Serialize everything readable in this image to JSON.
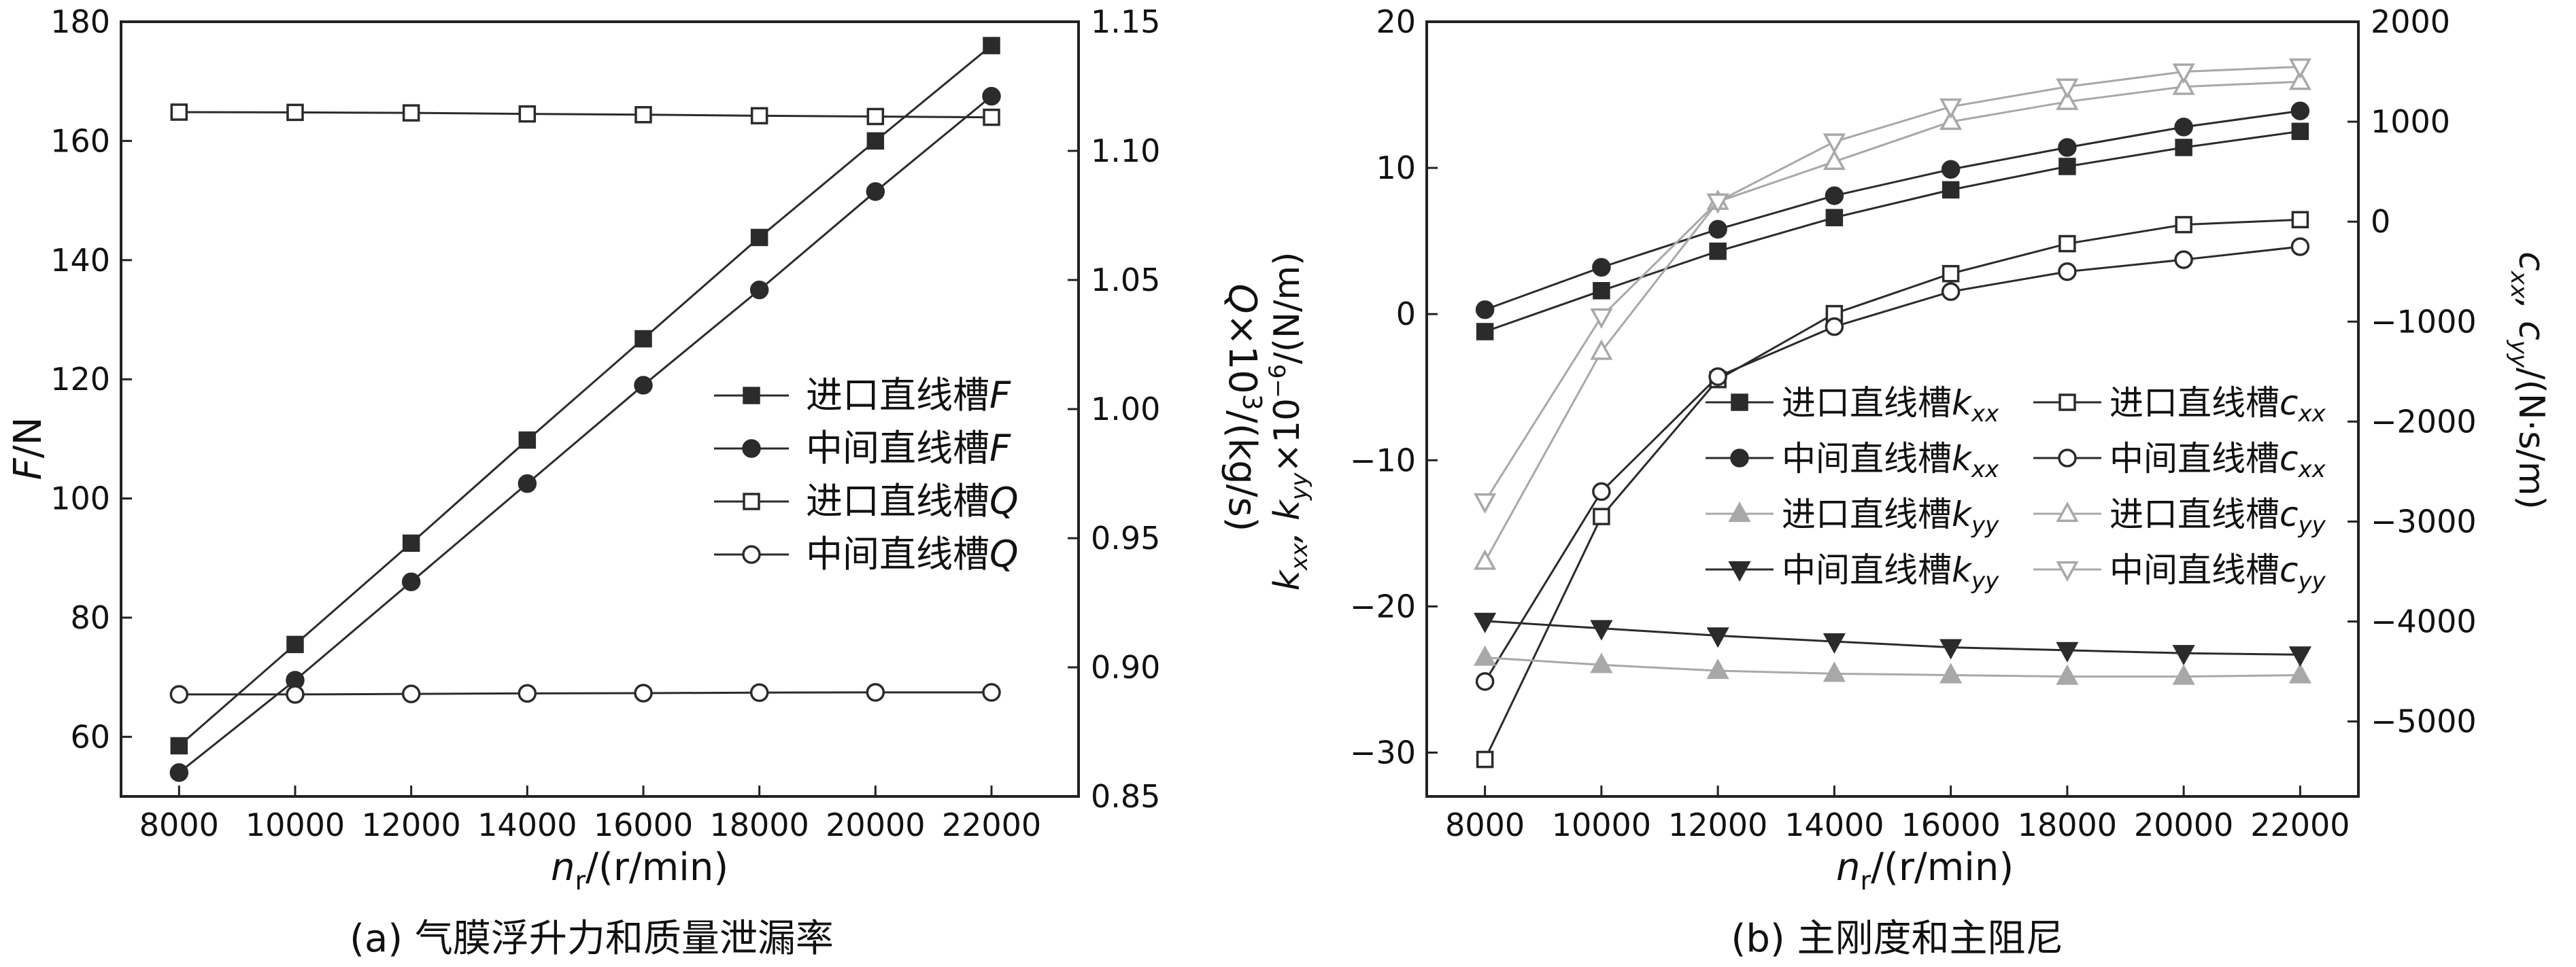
{
  "colors": {
    "dark": "#2b2b2b",
    "light": "#a8a8a8"
  },
  "chart_data": [
    {
      "type": "line",
      "caption": "(a) 气膜浮升力和质量泄漏率",
      "xlabel_main": "n",
      "xlabel_sub": "r",
      "xlabel_rest": "/(r/min)",
      "ylabel_left_main": "F",
      "ylabel_left_rest": "/N",
      "ylabel_right_main": "Q",
      "ylabel_right_rest": "×10",
      "ylabel_right_sup": "3",
      "ylabel_right_tail": "/(kg/s)",
      "x": [
        8000,
        10000,
        12000,
        14000,
        16000,
        18000,
        20000,
        22000
      ],
      "xlim": [
        7000,
        23500
      ],
      "ylim_left": [
        50,
        180
      ],
      "ylim_right": [
        0.85,
        1.15
      ],
      "xticks": [
        "8000",
        "10000",
        "12000",
        "14000",
        "16000",
        "18000",
        "20000",
        "22000"
      ],
      "yticks_left": [
        "60",
        "80",
        "100",
        "120",
        "140",
        "160",
        "180"
      ],
      "yticks_right": [
        "0.85",
        "0.90",
        "0.95",
        "1.00",
        "1.05",
        "1.10",
        "1.15"
      ],
      "legend_position": "center-right",
      "series": [
        {
          "name_main": "进口直线槽",
          "name_sub": "F",
          "axis": "left",
          "marker": "square-filled",
          "tone": "dark",
          "values": [
            58.5,
            75.5,
            92.5,
            109.8,
            126.8,
            143.8,
            160.0,
            176.0
          ]
        },
        {
          "name_main": "中间直线槽",
          "name_sub": "F",
          "axis": "left",
          "marker": "circle-filled",
          "tone": "dark",
          "values": [
            54.0,
            69.5,
            86.0,
            102.5,
            119.0,
            135.0,
            151.5,
            167.5
          ]
        },
        {
          "name_main": "进口直线槽",
          "name_sub": "Q",
          "axis": "right",
          "marker": "square-open",
          "tone": "dark",
          "values": [
            1.115,
            1.1149,
            1.1147,
            1.1143,
            1.114,
            1.1136,
            1.1133,
            1.113
          ]
        },
        {
          "name_main": "中间直线槽",
          "name_sub": "Q",
          "axis": "right",
          "marker": "circle-open",
          "tone": "dark",
          "values": [
            0.8895,
            0.8895,
            0.8897,
            0.8899,
            0.89,
            0.8902,
            0.8903,
            0.8903
          ]
        }
      ]
    },
    {
      "type": "line",
      "caption": "(b) 主刚度和主阻尼",
      "xlabel_main": "n",
      "xlabel_sub": "r",
      "xlabel_rest": "/(r/min)",
      "ylabel_left_text": "k_xx, k_yy ×10^−6 /(N/m)",
      "ylabel_left_parts": [
        "k",
        "xx",
        ", k",
        "yy",
        "×10",
        "−6",
        "/(N/m)"
      ],
      "ylabel_right_parts": [
        "c",
        "xx",
        ", c",
        "yy",
        "/(N·s/m)"
      ],
      "x": [
        8000,
        10000,
        12000,
        14000,
        16000,
        18000,
        20000,
        22000
      ],
      "xlim": [
        7000,
        23000
      ],
      "ylim_left": [
        -33,
        20
      ],
      "ylim_right": [
        -5750,
        2000
      ],
      "xticks": [
        "8000",
        "10000",
        "12000",
        "14000",
        "16000",
        "18000",
        "20000",
        "22000"
      ],
      "yticks_left": [
        "−30",
        "−20",
        "−10",
        "0",
        "10",
        "20"
      ],
      "yticks_right": [
        "−5000",
        "−4000",
        "−3000",
        "−2000",
        "−1000",
        "0",
        "1000",
        "2000"
      ],
      "legend_position": "center",
      "series": [
        {
          "name_main": "进口直线槽",
          "name_sub": "k",
          "name_subsub": "xx",
          "axis": "left",
          "marker": "square-filled",
          "tone": "dark",
          "values": [
            -1.2,
            1.6,
            4.3,
            6.6,
            8.5,
            10.1,
            11.4,
            12.5
          ]
        },
        {
          "name_main": "进口直线槽",
          "name_sub": "c",
          "name_subsub": "xx",
          "axis": "right",
          "marker": "square-open",
          "tone": "dark",
          "values": [
            -5380,
            -2950,
            -1580,
            -920,
            -520,
            -220,
            -30,
            20
          ]
        },
        {
          "name_main": "中间直线槽",
          "name_sub": "k",
          "name_subsub": "xx",
          "axis": "left",
          "marker": "circle-filled",
          "tone": "dark",
          "values": [
            0.3,
            3.2,
            5.8,
            8.1,
            9.9,
            11.4,
            12.8,
            13.9
          ]
        },
        {
          "name_main": "中间直线槽",
          "name_sub": "c",
          "name_subsub": "xx",
          "axis": "right",
          "marker": "circle-open",
          "tone": "dark",
          "values": [
            -4600,
            -2700,
            -1550,
            -1050,
            -700,
            -500,
            -380,
            -250
          ]
        },
        {
          "name_main": "进口直线槽",
          "name_sub": "k",
          "name_subsub": "yy",
          "axis": "left",
          "marker": "triangle-up-filled",
          "tone": "light",
          "values": [
            -23.5,
            -24.0,
            -24.4,
            -24.6,
            -24.7,
            -24.8,
            -24.8,
            -24.7
          ]
        },
        {
          "name_main": "进口直线槽",
          "name_sub": "c",
          "name_subsub": "yy",
          "axis": "right",
          "marker": "triangle-up-open",
          "tone": "light",
          "values": [
            -3400,
            -1300,
            200,
            600,
            1000,
            1200,
            1350,
            1400
          ]
        },
        {
          "name_main": "中间直线槽",
          "name_sub": "k",
          "name_subsub": "yy",
          "axis": "left",
          "marker": "triangle-down-filled",
          "tone": "dark",
          "values": [
            -21.0,
            -21.5,
            -22.0,
            -22.4,
            -22.8,
            -23.0,
            -23.2,
            -23.3
          ]
        },
        {
          "name_main": "中间直线槽",
          "name_sub": "c",
          "name_subsub": "yy",
          "axis": "right",
          "marker": "triangle-down-open",
          "tone": "light",
          "values": [
            -2800,
            -950,
            200,
            800,
            1150,
            1350,
            1500,
            1550
          ]
        }
      ]
    }
  ]
}
